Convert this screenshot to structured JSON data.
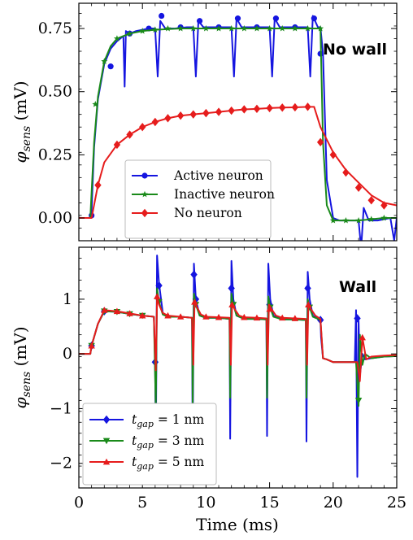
{
  "chart_data": [
    {
      "type": "line",
      "panel_label": "No wall",
      "ylabel_main": "φ",
      "ylabel_sub": "sens",
      "ylabel_unit": " (mV)",
      "xlim": [
        0,
        25
      ],
      "ylim": [
        -0.09,
        0.85
      ],
      "yticks": [
        0.0,
        0.25,
        0.5,
        0.75
      ],
      "ytick_labels": [
        "0.00",
        "0.25",
        "0.50",
        "0.75"
      ],
      "legend_position": "lower center",
      "series": [
        {
          "name": "Active neuron",
          "color": "#1515e0",
          "marker": "circle",
          "x": [
            0,
            0.9,
            1.0,
            1.2,
            1.5,
            2.0,
            2.5,
            3.0,
            3.5,
            3.6,
            3.7,
            4.0,
            4.5,
            5.0,
            5.5,
            6.0,
            6.2,
            6.4,
            6.8,
            7.5,
            8.5,
            9.0,
            9.2,
            9.4,
            9.8,
            10.5,
            11.5,
            12.0,
            12.2,
            12.4,
            12.8,
            13.5,
            14.5,
            15.0,
            15.2,
            15.4,
            15.8,
            16.5,
            17.5,
            18.0,
            18.2,
            18.4,
            18.8,
            19.0,
            19.2,
            19.5,
            20.0,
            20.5,
            21.0,
            21.5,
            22.0,
            22.2,
            22.4,
            22.8,
            23.5,
            24.5,
            24.8,
            25
          ],
          "y": [
            0.0,
            0.0,
            0.03,
            0.28,
            0.47,
            0.61,
            0.67,
            0.7,
            0.72,
            0.52,
            0.74,
            0.73,
            0.74,
            0.745,
            0.75,
            0.75,
            0.56,
            0.78,
            0.75,
            0.75,
            0.755,
            0.755,
            0.56,
            0.78,
            0.755,
            0.755,
            0.755,
            0.755,
            0.56,
            0.79,
            0.755,
            0.755,
            0.755,
            0.755,
            0.56,
            0.79,
            0.755,
            0.755,
            0.755,
            0.755,
            0.56,
            0.8,
            0.755,
            0.755,
            0.65,
            0.15,
            0.0,
            -0.01,
            -0.01,
            -0.01,
            -0.01,
            -0.12,
            0.04,
            -0.01,
            -0.01,
            0.0,
            -0.09,
            0.0
          ],
          "marker_x": [
            1.0,
            2.5,
            4.0,
            5.5,
            6.5,
            8.0,
            9.5,
            11.0,
            12.5,
            14.0,
            15.5,
            17.0,
            18.5,
            19.0
          ],
          "marker_y": [
            0.01,
            0.6,
            0.73,
            0.75,
            0.8,
            0.755,
            0.78,
            0.755,
            0.79,
            0.755,
            0.79,
            0.755,
            0.79,
            0.65
          ]
        },
        {
          "name": "Inactive neuron",
          "color": "#1a8a1a",
          "marker": "star",
          "x": [
            0,
            0.9,
            1.2,
            1.5,
            2.0,
            2.5,
            3.0,
            4.0,
            5.0,
            6.0,
            8.0,
            10.0,
            12.0,
            14.0,
            16.0,
            18.0,
            19.0,
            19.2,
            19.5,
            20.0,
            21.0,
            22.0,
            23.0,
            24.0,
            25.0
          ],
          "y": [
            0.0,
            0.0,
            0.3,
            0.48,
            0.62,
            0.68,
            0.71,
            0.73,
            0.74,
            0.745,
            0.75,
            0.75,
            0.75,
            0.75,
            0.75,
            0.75,
            0.75,
            0.3,
            0.05,
            -0.01,
            -0.01,
            -0.01,
            -0.005,
            0.0,
            0.0
          ],
          "marker_x": [
            1.3,
            2.0,
            3.0,
            4.0,
            5.0,
            6.0,
            7.0,
            8.0,
            9.0,
            10.0,
            11.0,
            12.0,
            13.0,
            14.0,
            15.0,
            16.0,
            17.0,
            18.0,
            19.0,
            20.0,
            21.0,
            22.0,
            23.0,
            24.0
          ],
          "marker_y": [
            0.45,
            0.62,
            0.71,
            0.73,
            0.74,
            0.745,
            0.75,
            0.75,
            0.75,
            0.75,
            0.75,
            0.75,
            0.75,
            0.75,
            0.75,
            0.75,
            0.75,
            0.75,
            0.75,
            -0.01,
            -0.01,
            -0.01,
            -0.005,
            0.0
          ]
        },
        {
          "name": "No neuron",
          "color": "#e61c1c",
          "marker": "diamond",
          "x": [
            0,
            1.0,
            1.5,
            2.0,
            3.0,
            4.0,
            5.0,
            6.0,
            7.0,
            8.0,
            9.0,
            10.0,
            11.0,
            12.0,
            13.0,
            14.0,
            15.0,
            16.0,
            17.0,
            18.0,
            18.5,
            19.0,
            20.0,
            21.0,
            22.0,
            23.0,
            24.0,
            25.0
          ],
          "y": [
            0.0,
            0.0,
            0.13,
            0.22,
            0.29,
            0.33,
            0.36,
            0.38,
            0.395,
            0.405,
            0.41,
            0.415,
            0.42,
            0.425,
            0.43,
            0.432,
            0.435,
            0.437,
            0.438,
            0.44,
            0.44,
            0.36,
            0.26,
            0.19,
            0.14,
            0.09,
            0.06,
            0.05
          ],
          "marker_x": [
            1.5,
            3.0,
            4.0,
            5.0,
            6.0,
            7.0,
            8.0,
            9.0,
            10.0,
            11.0,
            12.0,
            13.0,
            14.0,
            15.0,
            16.0,
            17.0,
            18.0,
            19.0,
            20.0,
            21.0,
            22.0,
            23.0,
            24.0
          ],
          "marker_y": [
            0.13,
            0.29,
            0.33,
            0.36,
            0.38,
            0.395,
            0.405,
            0.41,
            0.415,
            0.42,
            0.425,
            0.43,
            0.432,
            0.435,
            0.437,
            0.438,
            0.44,
            0.3,
            0.25,
            0.18,
            0.12,
            0.07,
            0.05
          ]
        }
      ]
    },
    {
      "type": "line",
      "panel_label": "Wall",
      "ylabel_main": "φ",
      "ylabel_sub": "sens",
      "ylabel_unit": " (mV)",
      "xlabel": "Time (ms)",
      "xlim": [
        0,
        25
      ],
      "ylim": [
        -2.45,
        1.95
      ],
      "yticks": [
        -2,
        -1,
        0,
        1
      ],
      "ytick_labels": [
        "−2",
        "−1",
        "0",
        "1"
      ],
      "xticks": [
        0,
        5,
        10,
        15,
        20,
        25
      ],
      "xtick_labels": [
        "0",
        "5",
        "10",
        "15",
        "20",
        "25"
      ],
      "legend_position": "lower left",
      "series": [
        {
          "name_main": "t",
          "name_sub": "gap",
          "name_rest": " = 1 nm",
          "color": "#1515e0",
          "marker": "diamond",
          "x": [
            0,
            0.9,
            1.0,
            1.5,
            2.0,
            3.0,
            4.0,
            5.0,
            5.9,
            6.0,
            6.05,
            6.15,
            6.3,
            6.6,
            7.0,
            8.0,
            8.9,
            8.95,
            9.05,
            9.2,
            9.5,
            10.0,
            11.0,
            11.85,
            11.9,
            12.0,
            12.15,
            12.4,
            13.0,
            14.0,
            14.75,
            14.8,
            14.9,
            15.05,
            15.3,
            16.0,
            17.0,
            17.85,
            17.9,
            18.0,
            18.15,
            18.4,
            19.0,
            19.05,
            19.2,
            19.5,
            20.0,
            21.0,
            21.7,
            21.8,
            21.9,
            22.0,
            22.1,
            22.3,
            22.5,
            23.0,
            24.0,
            25.0
          ],
          "y": [
            0.0,
            0.0,
            0.15,
            0.55,
            0.78,
            0.77,
            0.73,
            0.7,
            0.68,
            -0.2,
            -1.9,
            1.8,
            1.3,
            0.75,
            0.68,
            0.68,
            0.66,
            -1.7,
            1.65,
            1.0,
            0.7,
            0.66,
            0.66,
            0.64,
            -1.55,
            1.7,
            1.0,
            0.7,
            0.64,
            0.64,
            0.63,
            -1.5,
            1.65,
            1.0,
            0.7,
            0.63,
            0.63,
            0.62,
            -1.6,
            1.5,
            1.0,
            0.7,
            0.62,
            0.3,
            -0.08,
            -0.1,
            -0.15,
            -0.15,
            -0.15,
            0.8,
            -2.25,
            0.6,
            -0.4,
            0.0,
            -0.1,
            -0.08,
            -0.05,
            -0.04
          ],
          "marker_x": [
            1.0,
            2.0,
            6.0,
            6.3,
            9.05,
            9.2,
            12.0,
            15.0,
            18.0,
            19.0,
            21.9
          ],
          "marker_y": [
            0.15,
            0.78,
            -0.15,
            1.25,
            1.45,
            1.0,
            1.2,
            0.9,
            1.2,
            0.62,
            0.65
          ]
        },
        {
          "name_main": "t",
          "name_sub": "gap",
          "name_rest": " = 3 nm",
          "color": "#1a8a1a",
          "marker": "triangle-down",
          "x": [
            0,
            0.9,
            1.0,
            1.5,
            2.0,
            3.0,
            4.0,
            5.0,
            5.9,
            6.05,
            6.15,
            6.3,
            6.6,
            7.0,
            8.0,
            8.9,
            8.95,
            9.05,
            9.2,
            9.5,
            10.0,
            11.0,
            11.85,
            11.9,
            12.0,
            12.15,
            12.4,
            13.0,
            14.0,
            14.75,
            14.8,
            14.9,
            15.05,
            15.3,
            16.0,
            17.0,
            17.85,
            17.9,
            18.0,
            18.15,
            18.4,
            19.0,
            19.2,
            19.5,
            20.0,
            21.0,
            21.8,
            22.0,
            22.1,
            22.3,
            22.5,
            23.0,
            24.0,
            25.0
          ],
          "y": [
            0.0,
            0.0,
            0.15,
            0.55,
            0.78,
            0.77,
            0.73,
            0.7,
            0.68,
            -1.0,
            1.2,
            0.95,
            0.72,
            0.68,
            0.68,
            0.66,
            -0.9,
            1.1,
            0.9,
            0.7,
            0.66,
            0.66,
            0.64,
            -0.8,
            1.1,
            0.9,
            0.7,
            0.64,
            0.64,
            0.63,
            -0.8,
            1.05,
            0.85,
            0.68,
            0.63,
            0.63,
            0.62,
            -0.8,
            1.0,
            0.85,
            0.68,
            0.62,
            -0.08,
            -0.1,
            -0.15,
            -0.15,
            -0.15,
            -0.95,
            0.35,
            -0.2,
            0.0,
            -0.08,
            -0.05,
            -0.04
          ],
          "marker_x": [
            1.0,
            2.0,
            3.0,
            4.0,
            5.0,
            6.3,
            9.2,
            12.15,
            15.05,
            18.15,
            22.0
          ],
          "marker_y": [
            0.15,
            0.78,
            0.77,
            0.73,
            0.7,
            0.95,
            0.9,
            0.9,
            0.85,
            0.85,
            -0.85
          ]
        },
        {
          "name_main": "t",
          "name_sub": "gap",
          "name_rest": " = 5 nm",
          "color": "#e61c1c",
          "marker": "triangle-up",
          "x": [
            0,
            0.9,
            1.0,
            1.5,
            2.0,
            3.0,
            4.0,
            5.0,
            5.9,
            6.05,
            6.15,
            6.3,
            6.6,
            7.0,
            8.0,
            8.9,
            9.0,
            9.1,
            9.3,
            9.6,
            10.0,
            11.0,
            11.85,
            11.95,
            12.05,
            12.25,
            12.6,
            13.0,
            14.0,
            14.75,
            14.85,
            14.95,
            15.15,
            15.5,
            16.0,
            17.0,
            17.85,
            17.95,
            18.05,
            18.25,
            18.6,
            19.0,
            19.2,
            19.5,
            20.0,
            21.0,
            21.9,
            22.1,
            22.3,
            22.6,
            23.0,
            24.0,
            25.0
          ],
          "y": [
            0.0,
            0.0,
            0.15,
            0.55,
            0.8,
            0.78,
            0.74,
            0.7,
            0.68,
            -0.3,
            1.05,
            0.9,
            0.75,
            0.7,
            0.68,
            0.66,
            -0.2,
            0.95,
            0.85,
            0.72,
            0.68,
            0.67,
            0.66,
            -0.2,
            0.9,
            0.82,
            0.7,
            0.67,
            0.66,
            0.65,
            -0.2,
            0.9,
            0.82,
            0.7,
            0.66,
            0.65,
            0.64,
            -0.2,
            0.9,
            0.82,
            0.7,
            0.64,
            -0.08,
            -0.1,
            -0.15,
            -0.15,
            -0.15,
            -0.5,
            0.3,
            -0.1,
            -0.05,
            -0.03,
            -0.02
          ],
          "marker_x": [
            1.0,
            2.0,
            3.0,
            4.0,
            5.0,
            6.15,
            7.0,
            8.0,
            9.1,
            10.0,
            11.0,
            12.05,
            13.0,
            14.0,
            15.0,
            16.0,
            17.0,
            18.05,
            22.3
          ],
          "marker_y": [
            0.15,
            0.8,
            0.78,
            0.74,
            0.7,
            1.05,
            0.7,
            0.68,
            0.95,
            0.68,
            0.67,
            0.9,
            0.67,
            0.66,
            0.82,
            0.66,
            0.65,
            0.9,
            0.3
          ]
        }
      ]
    }
  ]
}
